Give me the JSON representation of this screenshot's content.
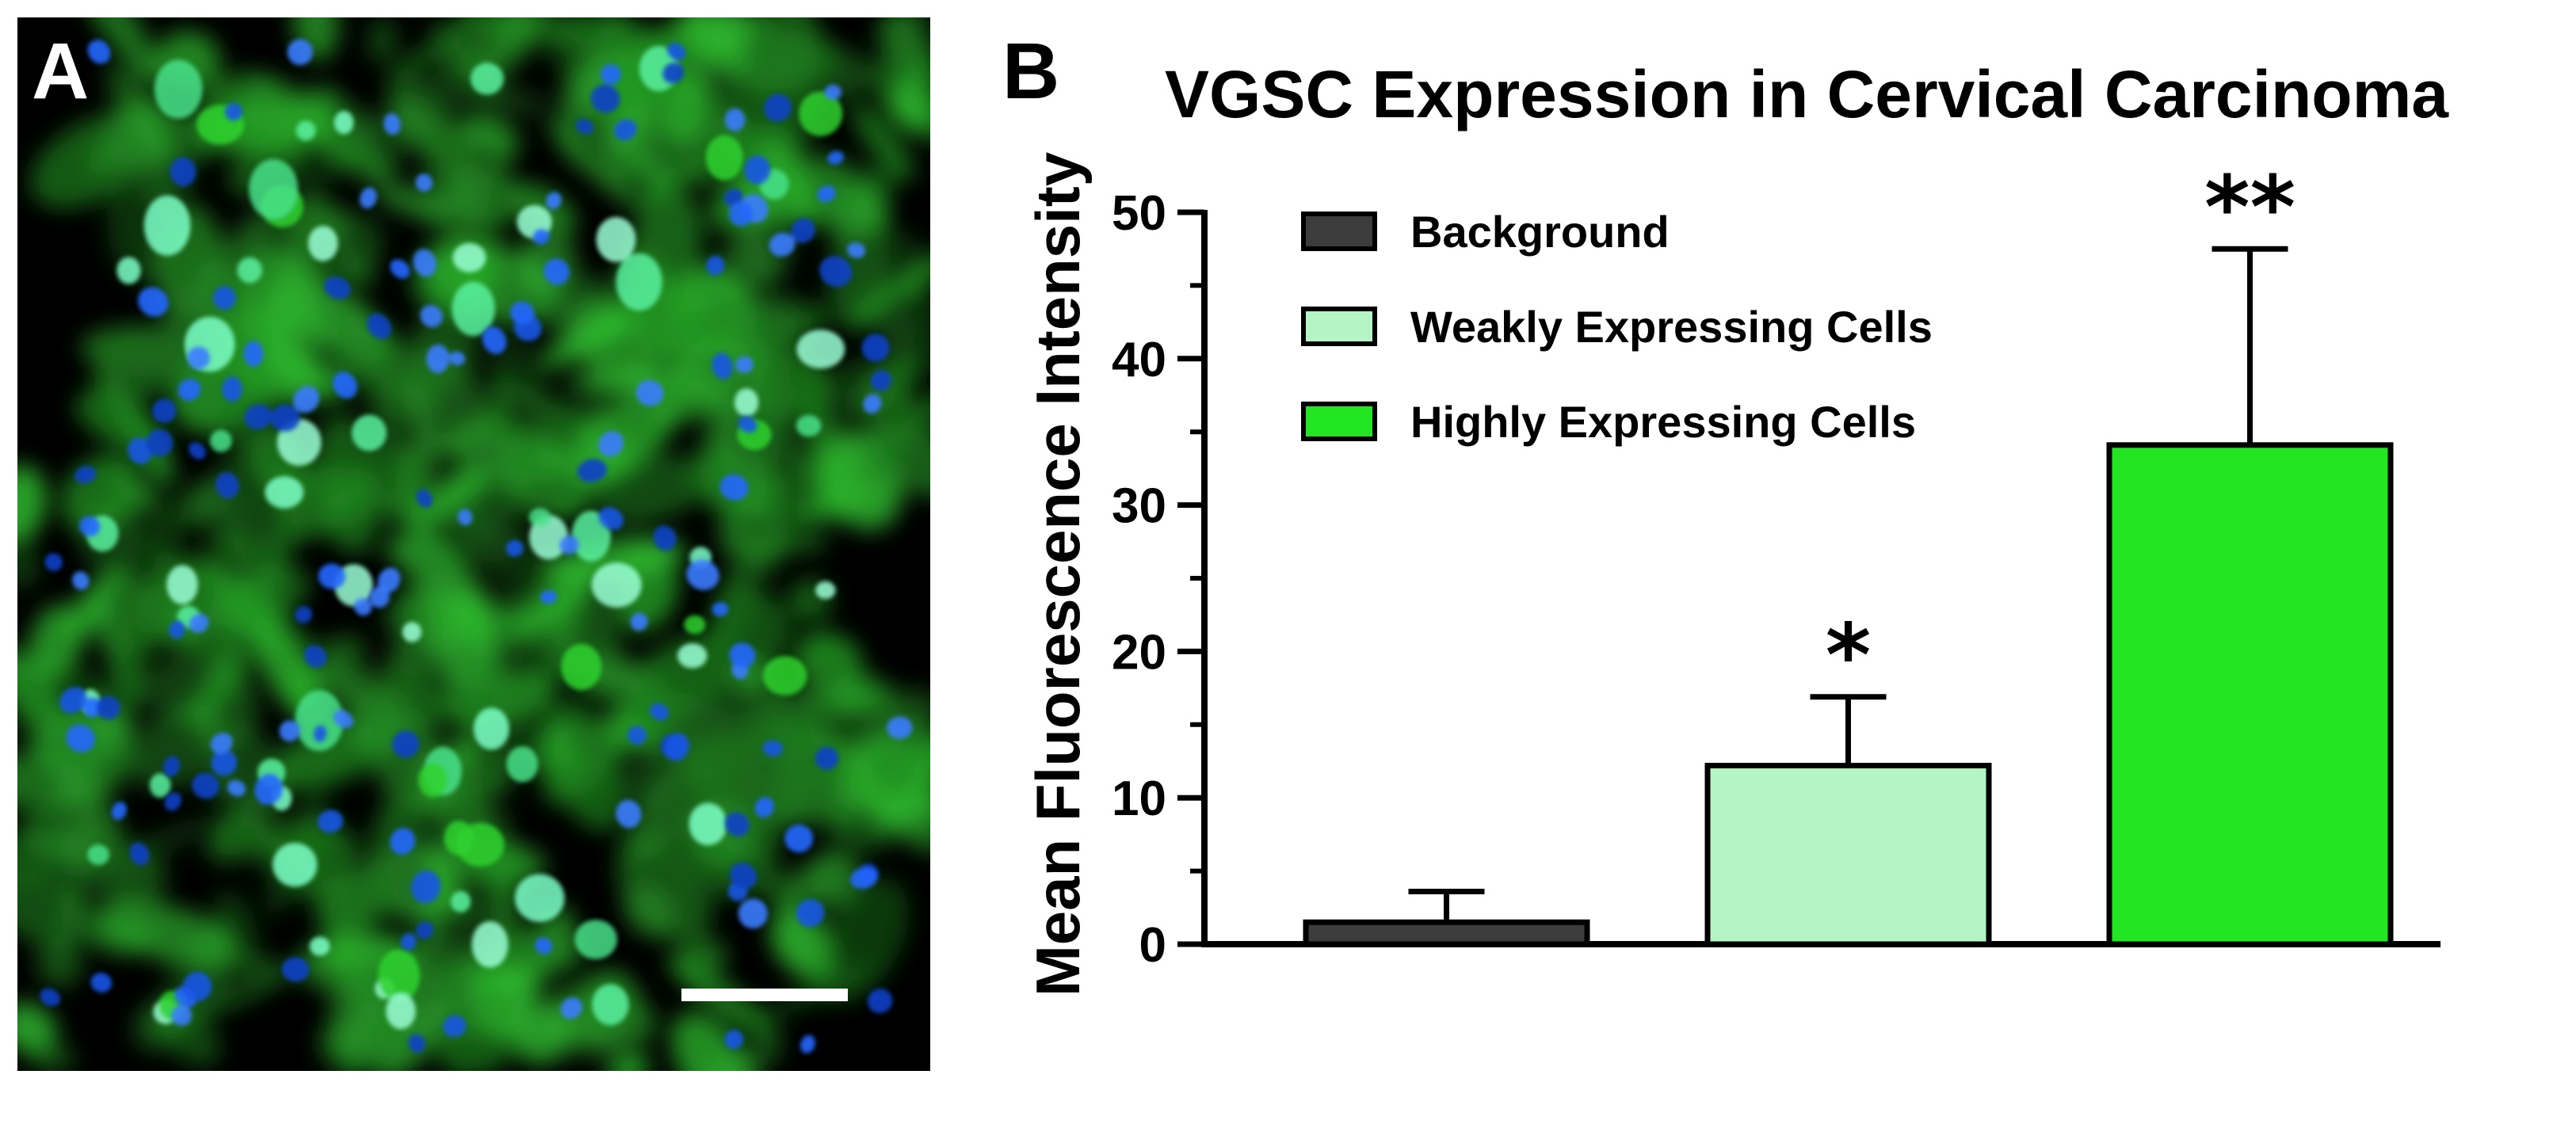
{
  "panels": {
    "a_label": "A",
    "b_label": "B"
  },
  "micrograph": {
    "icon": "fluorescence-micrograph-image",
    "channel_colors": {
      "vgsc": "#2fd12f",
      "nuclei": "#1a55e6",
      "background": "#000000",
      "scale_bar": "#ffffff"
    }
  },
  "chart_data": {
    "type": "bar",
    "title": "VGSC Expression in Cervical Carcinoma",
    "xlabel": "",
    "ylabel": "Mean Fluorescence Intensity",
    "ylim": [
      0,
      50
    ],
    "yticks": [
      0,
      10,
      20,
      30,
      40,
      50
    ],
    "minor_ticks_per_major": 2,
    "grid": false,
    "legend_position": "top-left",
    "categories": [
      "Background",
      "Weakly Expressing Cells",
      "Highly Expressing Cells"
    ],
    "values": [
      1.5,
      12.2,
      34.1
    ],
    "errors": [
      2.1,
      4.7,
      13.4
    ],
    "annotations": [
      "",
      "*",
      "**"
    ],
    "colors": [
      "#3c3c3c",
      "#b5f5c5",
      "#22e622"
    ]
  }
}
